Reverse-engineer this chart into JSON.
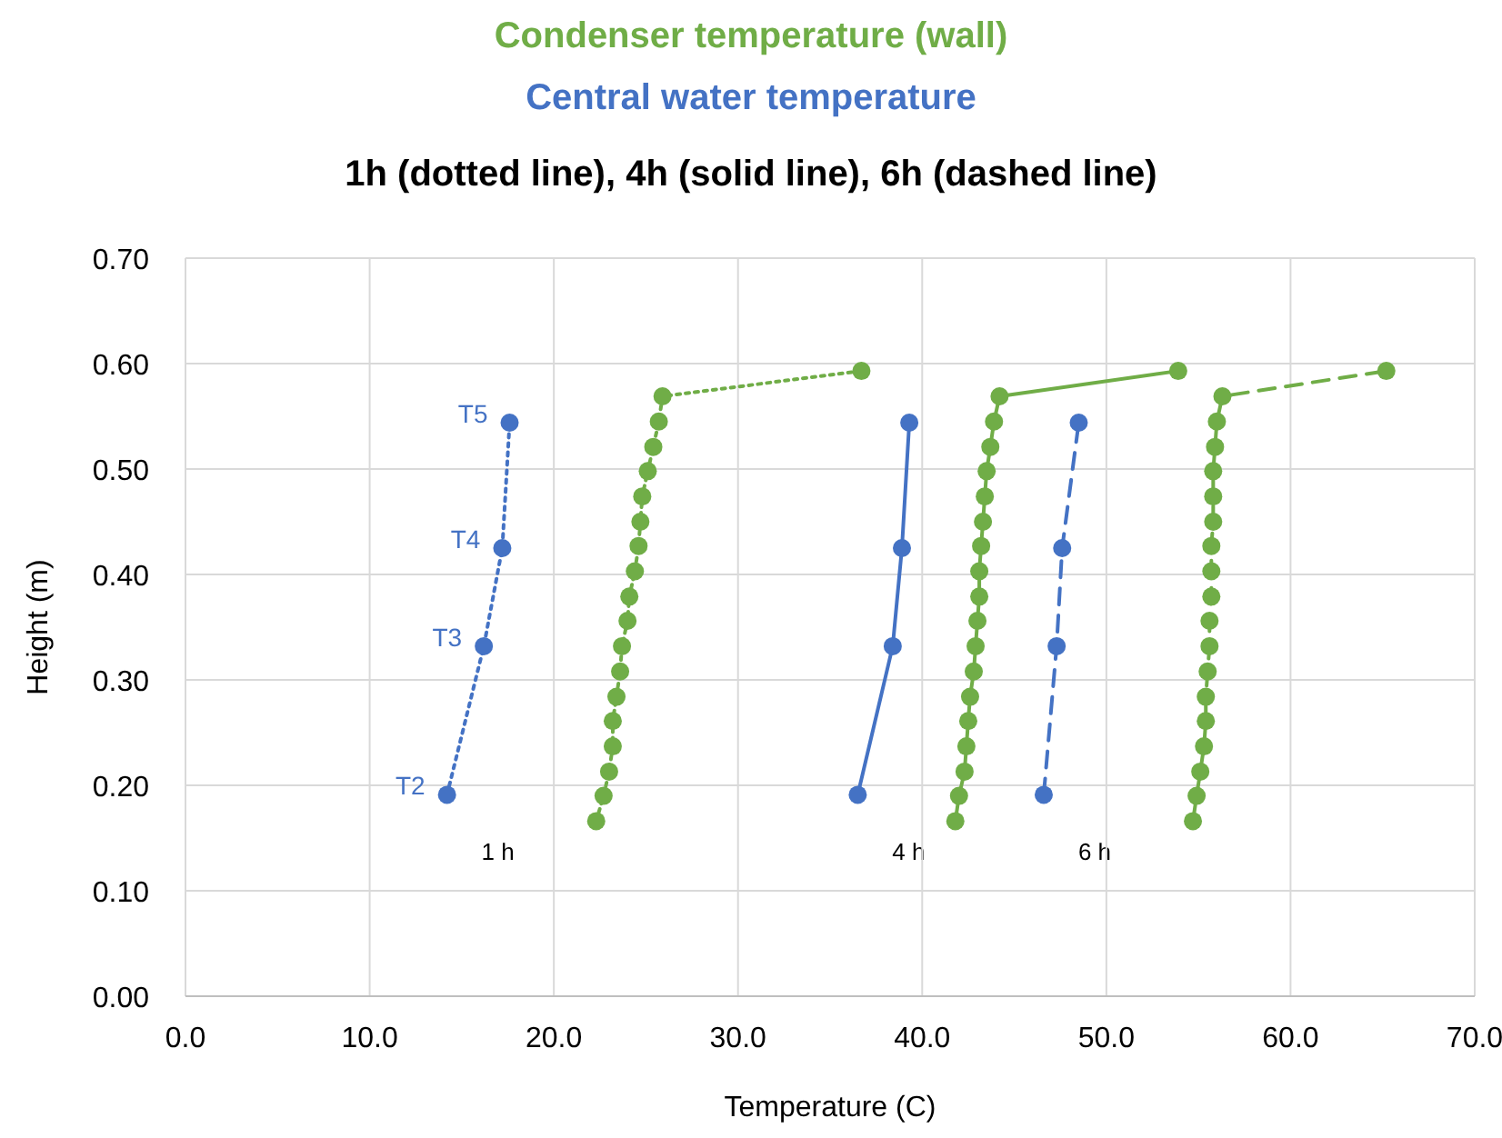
{
  "chart_data": {
    "type": "line",
    "title": "Condenser temperature (wall)",
    "subtitle": "Central water temperature",
    "xlabel": "Temperature (C)",
    "ylabel": "Height (m)",
    "annotations": [
      "1h (dotted line), 4h (solid line), 6h (dashed line)",
      {
        "text": "T2",
        "x": 14.2,
        "y": 0.191
      },
      {
        "text": "T3",
        "x": 16.2,
        "y": 0.332
      },
      {
        "text": "T4",
        "x": 17.2,
        "y": 0.425
      },
      {
        "text": "T5",
        "x": 17.6,
        "y": 0.544
      },
      "1 h",
      "4 h",
      "6 h"
    ],
    "xlim": [
      0,
      70
    ],
    "xticks": [
      {
        "value": 0,
        "label": "0.0"
      },
      {
        "value": 10,
        "label": "10.0"
      },
      {
        "value": 20,
        "label": "20.0"
      },
      {
        "value": 30,
        "label": "30.0"
      },
      {
        "value": 40,
        "label": "40.0"
      },
      {
        "value": 50,
        "label": "50.0"
      },
      {
        "value": 60,
        "label": "60.0"
      },
      {
        "value": 70,
        "label": "70.0"
      }
    ],
    "ylim": [
      0,
      0.7
    ],
    "yticks": [
      {
        "value": 0,
        "label": "0.00"
      },
      {
        "value": 0.1,
        "label": "0.10"
      },
      {
        "value": 0.2,
        "label": "0.20"
      },
      {
        "value": 0.3,
        "label": "0.30"
      },
      {
        "value": 0.4,
        "label": "0.40"
      },
      {
        "value": 0.5,
        "label": "0.50"
      },
      {
        "value": 0.6,
        "label": "0.60"
      },
      {
        "value": 0.7,
        "label": "0.70"
      }
    ],
    "grid": true,
    "marker": "circle",
    "series": [
      {
        "color": "#4472c4",
        "line_style": "dotted",
        "x": [
          14.2,
          16.2,
          17.2,
          17.6
        ],
        "values": [
          0.191,
          0.332,
          0.425,
          0.544
        ]
      },
      {
        "color": "#4472c4",
        "line_style": "solid",
        "x": [
          36.5,
          38.4,
          38.9,
          39.3
        ],
        "values": [
          0.191,
          0.332,
          0.425,
          0.544
        ]
      },
      {
        "color": "#4472c4",
        "line_style": "dashed",
        "x": [
          46.6,
          47.3,
          47.6,
          48.5
        ],
        "values": [
          0.191,
          0.332,
          0.425,
          0.544
        ]
      },
      {
        "color": "#70ad47",
        "line_style": "dotted",
        "x": [
          22.3,
          22.7,
          23.0,
          23.2,
          23.2,
          23.4,
          23.6,
          23.7,
          24.0,
          24.1,
          24.4,
          24.6,
          24.7,
          24.8,
          25.1,
          25.4,
          25.7,
          25.9,
          36.7
        ],
        "values": [
          0.166,
          0.19,
          0.213,
          0.237,
          0.261,
          0.284,
          0.308,
          0.332,
          0.356,
          0.379,
          0.403,
          0.427,
          0.45,
          0.474,
          0.498,
          0.521,
          0.545,
          0.569,
          0.593
        ]
      },
      {
        "color": "#70ad47",
        "line_style": "solid",
        "x": [
          41.8,
          42.0,
          42.3,
          42.4,
          42.5,
          42.6,
          42.8,
          42.9,
          43.0,
          43.1,
          43.1,
          43.2,
          43.3,
          43.4,
          43.5,
          43.7,
          43.9,
          44.2,
          53.9
        ],
        "values": [
          0.166,
          0.19,
          0.213,
          0.237,
          0.261,
          0.284,
          0.308,
          0.332,
          0.356,
          0.379,
          0.403,
          0.427,
          0.45,
          0.474,
          0.498,
          0.521,
          0.545,
          0.569,
          0.593
        ]
      },
      {
        "color": "#70ad47",
        "line_style": "dashed",
        "x": [
          54.7,
          54.9,
          55.1,
          55.3,
          55.4,
          55.4,
          55.5,
          55.6,
          55.6,
          55.7,
          55.7,
          55.7,
          55.8,
          55.8,
          55.8,
          55.9,
          56.0,
          56.3,
          65.2
        ],
        "values": [
          0.166,
          0.19,
          0.213,
          0.237,
          0.261,
          0.284,
          0.308,
          0.332,
          0.356,
          0.379,
          0.403,
          0.427,
          0.45,
          0.474,
          0.498,
          0.521,
          0.545,
          0.569,
          0.593
        ]
      }
    ]
  }
}
